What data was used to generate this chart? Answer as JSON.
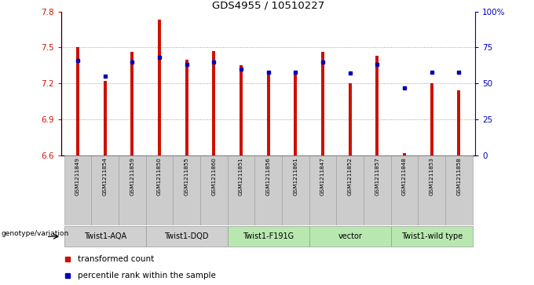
{
  "title": "GDS4955 / 10510227",
  "samples": [
    "GSM1211849",
    "GSM1211854",
    "GSM1211859",
    "GSM1211850",
    "GSM1211855",
    "GSM1211860",
    "GSM1211851",
    "GSM1211856",
    "GSM1211861",
    "GSM1211847",
    "GSM1211852",
    "GSM1211857",
    "GSM1211848",
    "GSM1211853",
    "GSM1211858"
  ],
  "red_values": [
    7.5,
    7.22,
    7.46,
    7.73,
    7.4,
    7.47,
    7.35,
    7.27,
    7.27,
    7.46,
    7.2,
    7.43,
    6.62,
    7.2,
    7.14
  ],
  "blue_percentiles": [
    66,
    55,
    65,
    68,
    63,
    65,
    60,
    58,
    58,
    65,
    57,
    63,
    47,
    58,
    58
  ],
  "groups": [
    {
      "label": "Twist1-AQA",
      "indices": [
        0,
        1,
        2
      ],
      "color": "#d0d0d0"
    },
    {
      "label": "Twist1-DQD",
      "indices": [
        3,
        4,
        5
      ],
      "color": "#d0d0d0"
    },
    {
      "label": "Twist1-F191G",
      "indices": [
        6,
        7,
        8
      ],
      "color": "#b8e8b0"
    },
    {
      "label": "vector",
      "indices": [
        9,
        10,
        11
      ],
      "color": "#b8e8b0"
    },
    {
      "label": "Twist1-wild type",
      "indices": [
        12,
        13,
        14
      ],
      "color": "#b8e8b0"
    }
  ],
  "ylim_left": [
    6.6,
    7.8
  ],
  "ylim_right": [
    0,
    100
  ],
  "yticks_left": [
    6.6,
    6.9,
    7.2,
    7.5,
    7.8
  ],
  "yticks_right": [
    0,
    25,
    50,
    75,
    100
  ],
  "ytick_labels_right": [
    "0",
    "25",
    "50",
    "75",
    "100%"
  ],
  "bar_color": "#cc1100",
  "percentile_color": "#0000bb",
  "grid_color": "#888888",
  "legend_red": "transformed count",
  "legend_blue": "percentile rank within the sample",
  "bar_width": 0.12
}
